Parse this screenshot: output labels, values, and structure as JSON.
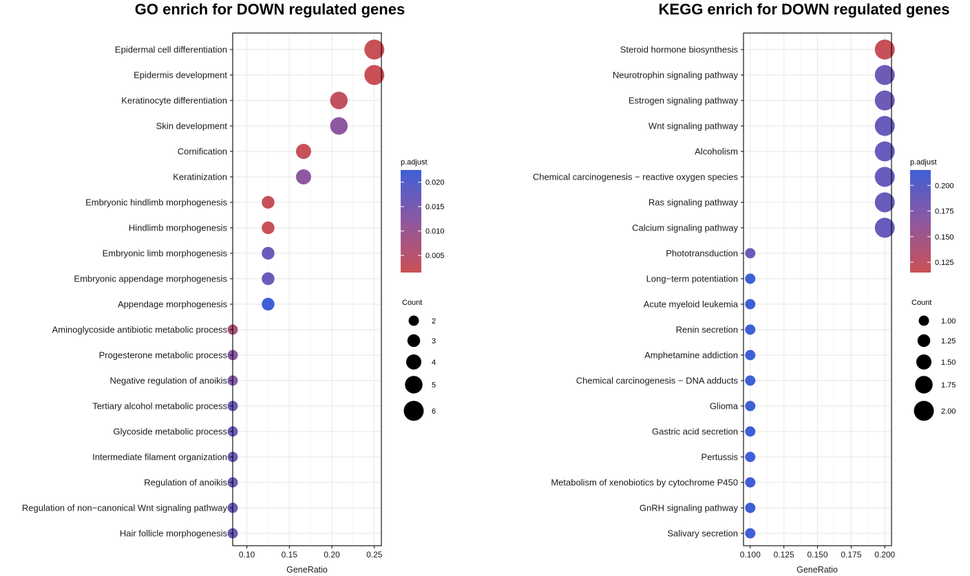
{
  "colors": {
    "low": "#cb5055",
    "high": "#3f5fd6",
    "grid": "#ebebeb",
    "axis": "#000000"
  },
  "chart_data": [
    {
      "type": "scatter",
      "title": "GO enrich for DOWN regulated genes",
      "xlabel": "GeneRatio",
      "ylabel": "",
      "xlim": [
        0.0833,
        0.2583
      ],
      "xticks": [
        0.1,
        0.15,
        0.2,
        0.25
      ],
      "xtick_labels": [
        "0.10",
        "0.15",
        "0.20",
        "0.25"
      ],
      "grid": true,
      "categories": [
        "Epidermal cell differentiation",
        "Epidermis development",
        "Keratinocyte differentiation",
        "Skin development",
        "Cornification",
        "Keratinization",
        "Embryonic hindlimb morphogenesis",
        "Hindlimb morphogenesis",
        "Embryonic limb morphogenesis",
        "Embryonic appendage morphogenesis",
        "Appendage morphogenesis",
        "Aminoglycoside antibiotic metabolic process",
        "Progesterone metabolic process",
        "Negative regulation of anoikis",
        "Tertiary alcohol metabolic process",
        "Glycoside metabolic process",
        "Intermediate filament organization",
        "Regulation of anoikis",
        "Regulation of non−canonical Wnt signaling pathway",
        "Hair follicle morphogenesis"
      ],
      "gene_ratio": [
        0.25,
        0.25,
        0.2083,
        0.2083,
        0.1667,
        0.1667,
        0.125,
        0.125,
        0.125,
        0.125,
        0.125,
        0.0833,
        0.0833,
        0.0833,
        0.0833,
        0.0833,
        0.0833,
        0.0833,
        0.0833,
        0.0833
      ],
      "count": [
        6,
        6,
        5,
        5,
        4,
        4,
        3,
        3,
        3,
        3,
        3,
        2,
        2,
        2,
        2,
        2,
        2,
        2,
        2,
        2
      ],
      "p_adjust": [
        0.0018,
        0.0018,
        0.003,
        0.012,
        0.0022,
        0.012,
        0.002,
        0.002,
        0.017,
        0.017,
        0.0225,
        0.007,
        0.013,
        0.0135,
        0.0165,
        0.0165,
        0.0165,
        0.0165,
        0.0165,
        0.0165
      ],
      "legend": {
        "color_title": "p.adjust",
        "color_range": [
          0.0015,
          0.0225
        ],
        "color_ticks": [
          0.005,
          0.01,
          0.015,
          0.02
        ],
        "color_tick_labels": [
          "0.005",
          "0.010",
          "0.015",
          "0.020"
        ],
        "size_title": "Count",
        "size_values": [
          2,
          3,
          4,
          5,
          6
        ],
        "size_labels": [
          "2",
          "3",
          "4",
          "5",
          "6"
        ],
        "size_range": [
          2,
          6
        ],
        "placement": "right"
      }
    },
    {
      "type": "scatter",
      "title": "KEGG enrich for DOWN regulated genes",
      "xlabel": "GeneRatio",
      "ylabel": "",
      "xlim": [
        0.095,
        0.205
      ],
      "xticks": [
        0.1,
        0.125,
        0.15,
        0.175,
        0.2
      ],
      "xtick_labels": [
        "0.100",
        "0.125",
        "0.150",
        "0.175",
        "0.200"
      ],
      "grid": true,
      "categories": [
        "Steroid hormone biosynthesis",
        "Neurotrophin signaling pathway",
        "Estrogen signaling pathway",
        "Wnt signaling pathway",
        "Alcoholism",
        "Chemical carcinogenesis − reactive oxygen species",
        "Ras signaling pathway",
        "Calcium signaling pathway",
        "Phototransduction",
        "Long−term potentiation",
        "Acute myeloid leukemia",
        "Renin secretion",
        "Amphetamine addiction",
        "Chemical carcinogenesis − DNA adducts",
        "Glioma",
        "Gastric acid secretion",
        "Pertussis",
        "Metabolism of xenobiotics by cytochrome P450",
        "GnRH signaling pathway",
        "Salivary secretion"
      ],
      "gene_ratio": [
        0.2,
        0.2,
        0.2,
        0.2,
        0.2,
        0.2,
        0.2,
        0.2,
        0.1,
        0.1,
        0.1,
        0.1,
        0.1,
        0.1,
        0.1,
        0.1,
        0.1,
        0.1,
        0.1,
        0.1
      ],
      "count": [
        2,
        2,
        2,
        2,
        2,
        2,
        2,
        2,
        1,
        1,
        1,
        1,
        1,
        1,
        1,
        1,
        1,
        1,
        1,
        1
      ],
      "p_adjust": [
        0.118,
        0.185,
        0.185,
        0.19,
        0.19,
        0.19,
        0.19,
        0.19,
        0.19,
        0.215,
        0.215,
        0.215,
        0.215,
        0.215,
        0.215,
        0.215,
        0.215,
        0.215,
        0.215,
        0.215
      ],
      "legend": {
        "color_title": "p.adjust",
        "color_range": [
          0.115,
          0.215
        ],
        "color_ticks": [
          0.125,
          0.15,
          0.175,
          0.2
        ],
        "color_tick_labels": [
          "0.125",
          "0.150",
          "0.175",
          "0.200"
        ],
        "size_title": "Count",
        "size_values": [
          1.0,
          1.25,
          1.5,
          1.75,
          2.0
        ],
        "size_labels": [
          "1.00",
          "1.25",
          "1.50",
          "1.75",
          "2.00"
        ],
        "size_range": [
          1,
          2
        ],
        "placement": "right"
      }
    }
  ]
}
